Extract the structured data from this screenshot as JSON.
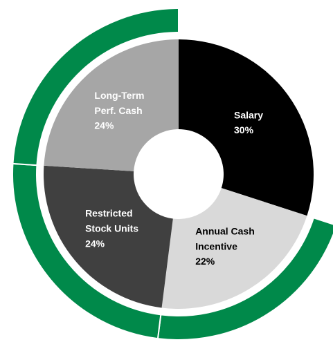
{
  "chart_data": {
    "type": "donut",
    "categories": [
      "Salary",
      "Annual Cash Incentive",
      "Restricted Stock Units",
      "Long-Term Perf. Cash"
    ],
    "values": [
      30,
      22,
      24,
      24
    ],
    "value_labels": [
      "30%",
      "22%",
      "24%",
      "24%"
    ],
    "colors": [
      "#000000",
      "#d9d9d9",
      "#404040",
      "#a6a6a6"
    ],
    "label_colors": [
      "#ffffff",
      "#000000",
      "#ffffff",
      "#ffffff"
    ],
    "ring_color": "#00894a"
  }
}
